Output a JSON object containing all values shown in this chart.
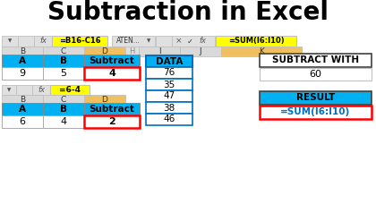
{
  "title": "Subtraction in Excel",
  "title_fontsize": 20,
  "bg_color": "#ffffff",
  "formula_bar1_fx": "=B16-C16",
  "formula_bar2_left": "ATEN...",
  "formula_bar2_fx": "=SUM(I6:I10)",
  "formula_bar3_fx": "=6-4",
  "yellow": "#ffff00",
  "orange_col": "#f0c060",
  "table1_headers": [
    "A",
    "B",
    "Subtract"
  ],
  "table1_row": [
    "9",
    "5",
    "4"
  ],
  "table2_headers": [
    "A",
    "B",
    "Subtract"
  ],
  "table2_row": [
    "6",
    "4",
    "2"
  ],
  "blue": "#00b0f0",
  "red_border": "#ff0000",
  "dark_border": "#404040",
  "blue_border": "#0070c0",
  "gray_bar": "#e0e0e0",
  "col_hdr_bg": "#d9d9d9",
  "white": "#ffffff",
  "light_gray": "#c0c0c0",
  "data_header": "DATA",
  "data_values": [
    "76",
    "35",
    "47",
    "38",
    "46"
  ],
  "sw_header": "SUBTRACT WITH",
  "sw_value": "60",
  "result_header": "RESULT",
  "result_formula": "=SUM(I6:I10)",
  "result_formula_color": "#0070c0"
}
